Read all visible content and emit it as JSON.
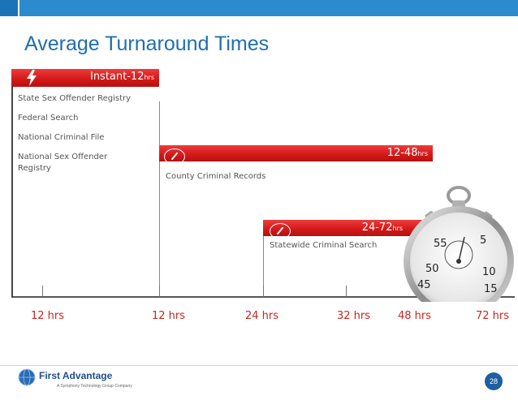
{
  "slide": {
    "title": "Average Turnaround Times",
    "page_number": "28"
  },
  "bars": [
    {
      "label": "Instant-12",
      "unit": "hrs"
    },
    {
      "label": "12-48",
      "unit": "hrs"
    },
    {
      "label": "24-72",
      "unit": "hrs"
    }
  ],
  "instant_items": [
    "State Sex Offender Registry",
    "Federal Search",
    "National Criminal File",
    "National Sex Offender Registry"
  ],
  "county_item": "County Criminal Records",
  "statewide_item": "Statewide Criminal Search",
  "axis_labels": [
    "12 hrs",
    "12 hrs",
    "24 hrs",
    "32 hrs",
    "48 hrs",
    "72 hrs"
  ],
  "stopwatch_numbers": [
    "5",
    "10",
    "15",
    "45",
    "50",
    "55"
  ],
  "logo": {
    "name": "First Advantage",
    "tagline": "A Symphony Technology Group Company"
  },
  "colors": {
    "accent_blue": "#2c8bcf",
    "bar_red": "#d41a1a",
    "axis_label_red": "#c8261f"
  }
}
